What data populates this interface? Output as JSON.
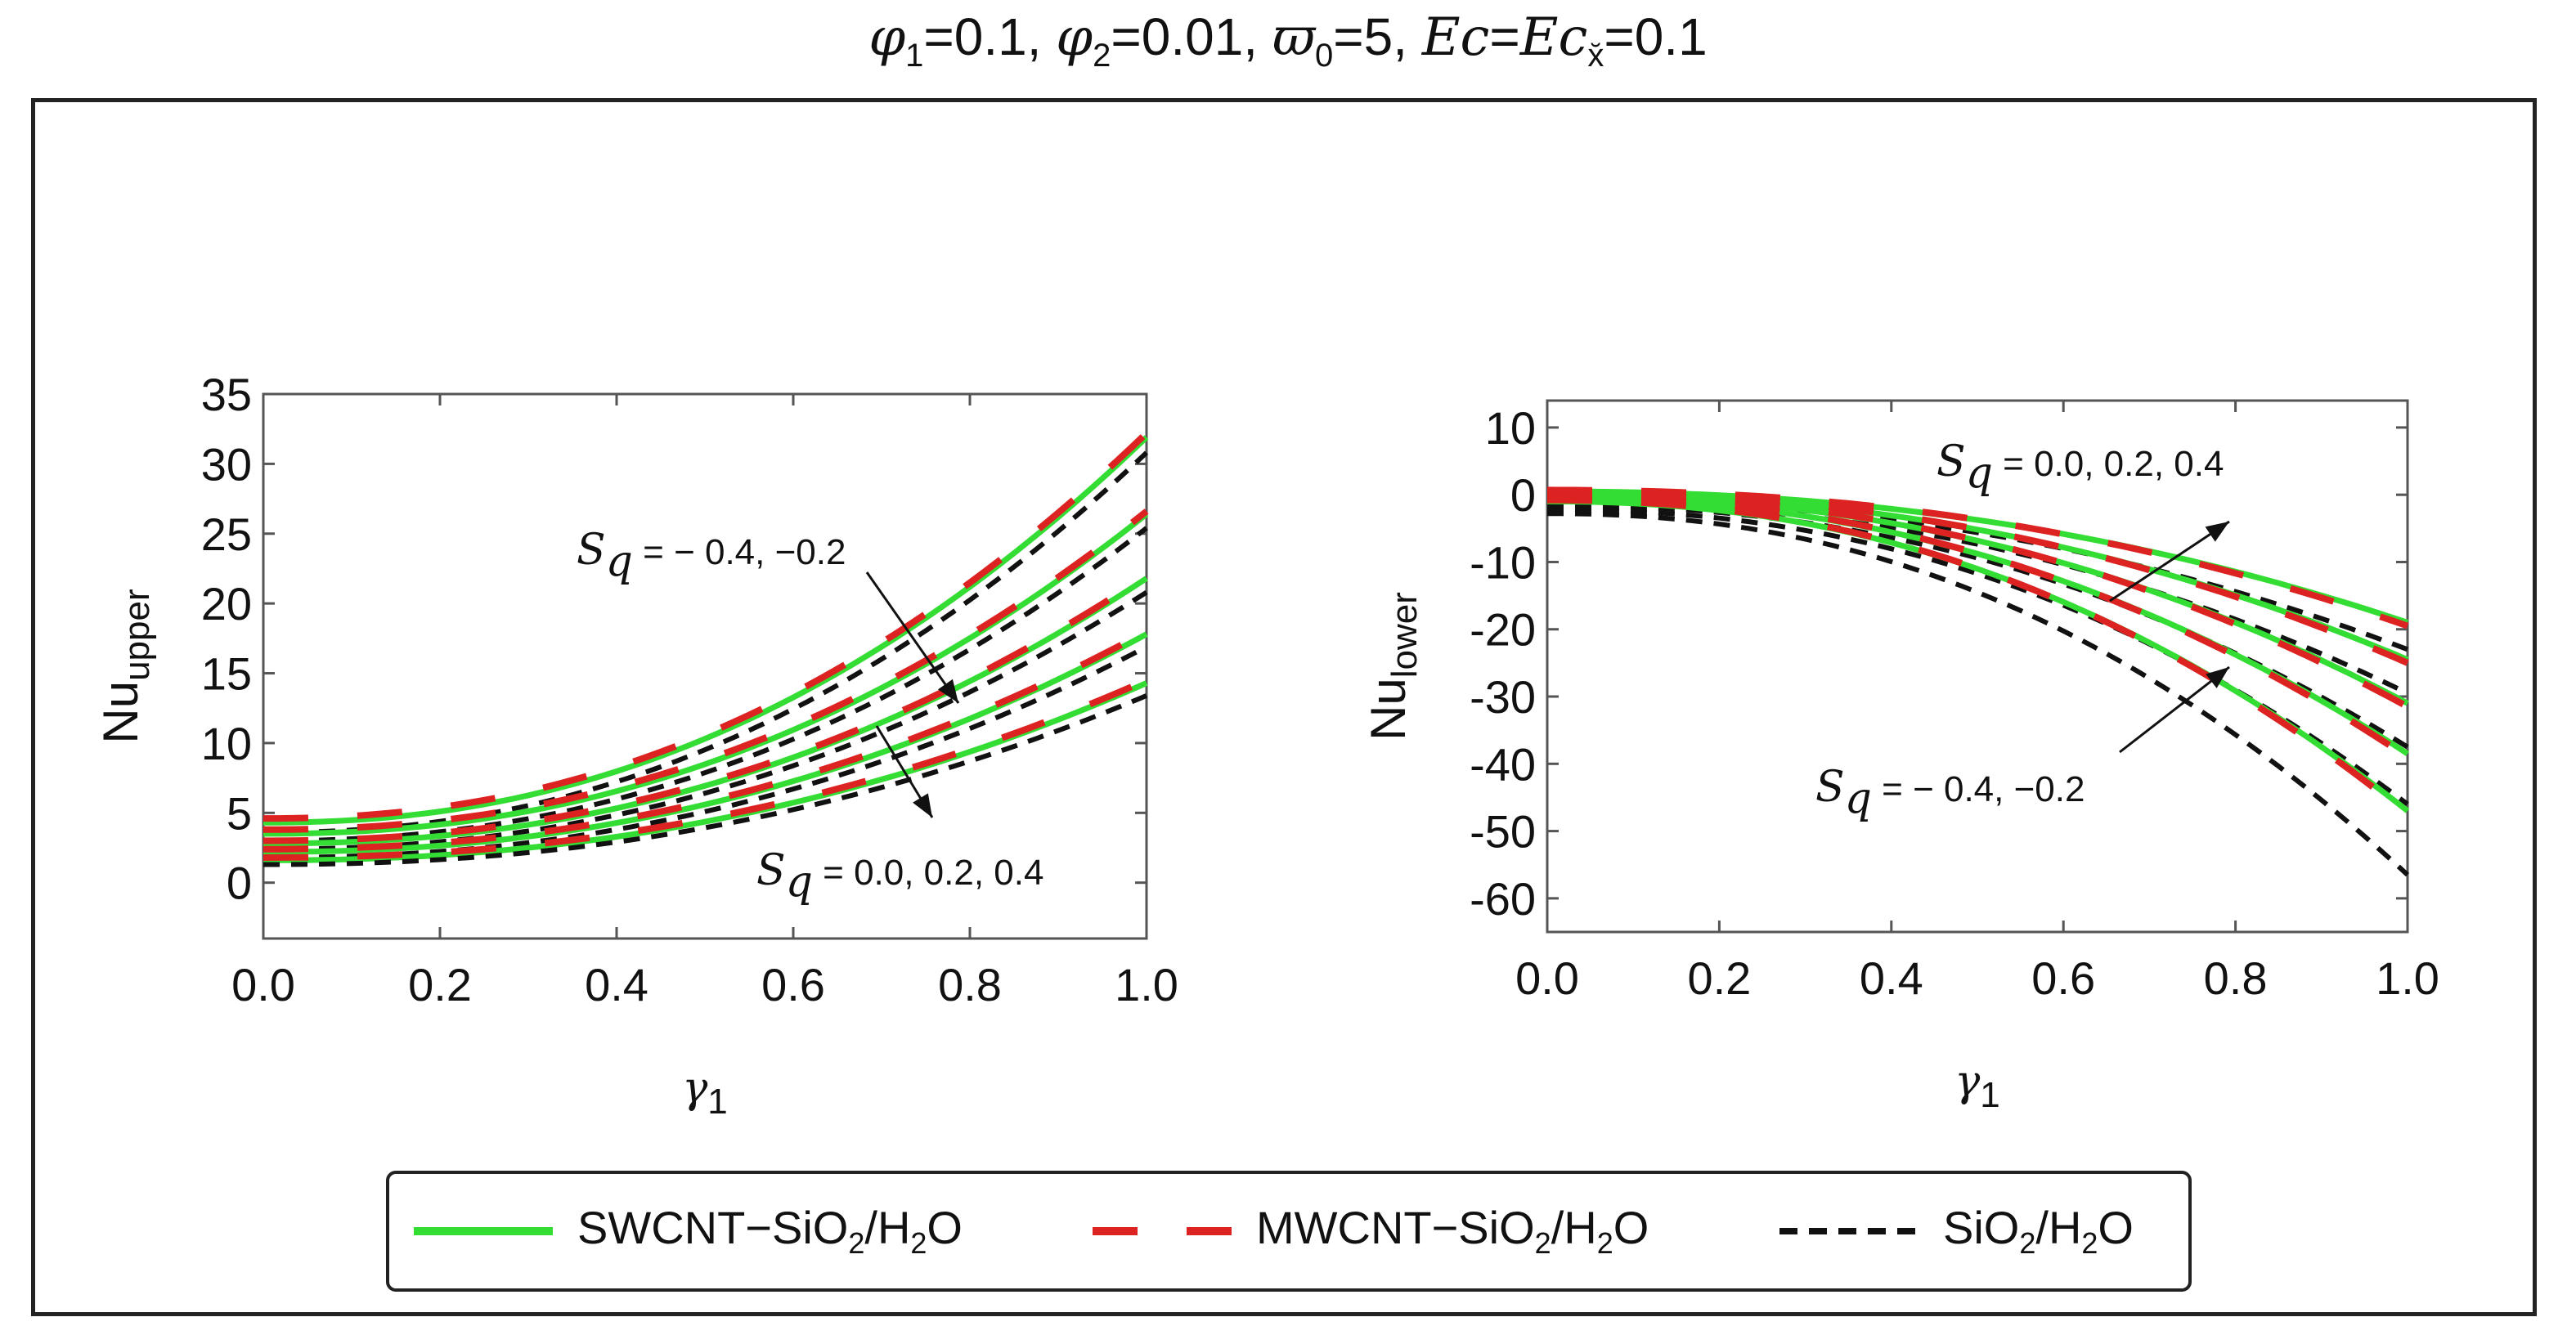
{
  "title": {
    "phi1_sym": "φ",
    "phi1_sub": "1",
    "phi1_val": "=0.1, ",
    "phi2_sym": "φ",
    "phi2_sub": "2",
    "phi2_val": "=0.01, ",
    "omega_sym": "ϖ",
    "omega_sub": "0",
    "omega_val": "=5, ",
    "ec_sym": "Ec",
    "ec_eq": "=",
    "ecx_sym": "Ec",
    "ecx_sub": "x̆",
    "ecx_val": "=0.1"
  },
  "chart_data": [
    {
      "type": "line",
      "name": "upper",
      "ylabel_main": "Nu",
      "ylabel_sub": "upper",
      "xlabel_main": "γ",
      "xlabel_sub": "1",
      "xlim": [
        0,
        1
      ],
      "ylim": [
        -4,
        35
      ],
      "xticks": [
        "0.0",
        "0.2",
        "0.4",
        "0.6",
        "0.8",
        "1.0"
      ],
      "yticks": [
        "35",
        "30",
        "25",
        "20",
        "15",
        "10",
        "5",
        "0"
      ],
      "ytick_values": [
        35,
        30,
        25,
        20,
        15,
        10,
        5,
        0
      ],
      "xtick_values": [
        0,
        0.2,
        0.4,
        0.6,
        0.8,
        1.0
      ],
      "annotations": [
        {
          "s": "S",
          "sub": "q",
          "text": " = − 0.4, −0.2"
        },
        {
          "s": "S",
          "sub": "q",
          "text": " = 0.0, 0.2, 0.4"
        }
      ],
      "series": [
        {
          "fluid": "SWCNT",
          "Sq": -0.4,
          "start": 4.3,
          "end": 31.9
        },
        {
          "fluid": "MWCNT",
          "Sq": -0.4,
          "start": 4.6,
          "end": 32.2
        },
        {
          "fluid": "SiO2",
          "Sq": -0.4,
          "start": 3.6,
          "end": 30.8
        },
        {
          "fluid": "SWCNT",
          "Sq": -0.2,
          "start": 3.5,
          "end": 26.4
        },
        {
          "fluid": "MWCNT",
          "Sq": -0.2,
          "start": 3.8,
          "end": 26.6
        },
        {
          "fluid": "SiO2",
          "Sq": -0.2,
          "start": 3.0,
          "end": 25.4
        },
        {
          "fluid": "SWCNT",
          "Sq": 0.0,
          "start": 2.8,
          "end": 21.8
        },
        {
          "fluid": "MWCNT",
          "Sq": 0.0,
          "start": 3.0,
          "end": 22.0
        },
        {
          "fluid": "SiO2",
          "Sq": 0.0,
          "start": 2.4,
          "end": 20.8
        },
        {
          "fluid": "SWCNT",
          "Sq": 0.2,
          "start": 2.2,
          "end": 17.8
        },
        {
          "fluid": "MWCNT",
          "Sq": 0.2,
          "start": 2.4,
          "end": 18.0
        },
        {
          "fluid": "SiO2",
          "Sq": 0.2,
          "start": 1.8,
          "end": 16.9
        },
        {
          "fluid": "SWCNT",
          "Sq": 0.4,
          "start": 1.6,
          "end": 14.3
        },
        {
          "fluid": "MWCNT",
          "Sq": 0.4,
          "start": 1.8,
          "end": 14.5
        },
        {
          "fluid": "SiO2",
          "Sq": 0.4,
          "start": 1.3,
          "end": 13.4
        }
      ]
    },
    {
      "type": "line",
      "name": "lower",
      "ylabel_main": "Nu",
      "ylabel_sub": "lower",
      "xlabel_main": "γ",
      "xlabel_sub": "1",
      "xlim": [
        0,
        1
      ],
      "ylim": [
        -65,
        14
      ],
      "xticks": [
        "0.0",
        "0.2",
        "0.4",
        "0.6",
        "0.8",
        "1.0"
      ],
      "yticks": [
        "10",
        "0",
        "-10",
        "-20",
        "-30",
        "-40",
        "-50",
        "-60"
      ],
      "ytick_values": [
        10,
        0,
        -10,
        -20,
        -30,
        -40,
        -50,
        -60
      ],
      "xtick_values": [
        0,
        0.2,
        0.4,
        0.6,
        0.8,
        1.0
      ],
      "annotations": [
        {
          "s": "S",
          "sub": "q",
          "text": " = 0.0, 0.2, 0.4"
        },
        {
          "s": "S",
          "sub": "q",
          "text": " = − 0.4, −0.2"
        }
      ],
      "series": [
        {
          "fluid": "SWCNT",
          "Sq": 0.4,
          "start": 0.5,
          "end": -19.0
        },
        {
          "fluid": "MWCNT",
          "Sq": 0.4,
          "start": 0.7,
          "end": -19.5
        },
        {
          "fluid": "SiO2",
          "Sq": 0.4,
          "start": -0.8,
          "end": -23.0
        },
        {
          "fluid": "SWCNT",
          "Sq": 0.2,
          "start": 0.2,
          "end": -24.5
        },
        {
          "fluid": "MWCNT",
          "Sq": 0.2,
          "start": 0.4,
          "end": -25.0
        },
        {
          "fluid": "SiO2",
          "Sq": 0.2,
          "start": -1.2,
          "end": -29.5
        },
        {
          "fluid": "SWCNT",
          "Sq": 0.0,
          "start": -0.1,
          "end": -31.0
        },
        {
          "fluid": "MWCNT",
          "Sq": 0.0,
          "start": 0.1,
          "end": -31.5
        },
        {
          "fluid": "SiO2",
          "Sq": 0.0,
          "start": -1.6,
          "end": -37.5
        },
        {
          "fluid": "SWCNT",
          "Sq": -0.2,
          "start": -0.5,
          "end": -38.5
        },
        {
          "fluid": "MWCNT",
          "Sq": -0.2,
          "start": -0.3,
          "end": -39.0
        },
        {
          "fluid": "SiO2",
          "Sq": -0.2,
          "start": -2.2,
          "end": -46.0
        },
        {
          "fluid": "SWCNT",
          "Sq": -0.4,
          "start": -1.0,
          "end": -47.0
        },
        {
          "fluid": "MWCNT",
          "Sq": -0.4,
          "start": -0.8,
          "end": -47.5
        },
        {
          "fluid": "SiO2",
          "Sq": -0.4,
          "start": -2.8,
          "end": -56.5
        }
      ]
    }
  ],
  "legend": [
    {
      "key": "SWCNT",
      "label_a": "SWCNT−SiO",
      "sub1": "2",
      "label_b": "/H",
      "sub2": "2",
      "label_c": "O",
      "color": "#33dd33",
      "style": "solid"
    },
    {
      "key": "MWCNT",
      "label_a": "MWCNT−SiO",
      "sub1": "2",
      "label_b": "/H",
      "sub2": "2",
      "label_c": "O",
      "color": "#dd2222",
      "style": "dashed-long"
    },
    {
      "key": "SiO2",
      "label_a": "SiO",
      "sub1": "2",
      "label_b": "/H",
      "sub2": "2",
      "label_c": "O",
      "color": "#111111",
      "style": "dashed-short"
    }
  ],
  "colors": {
    "SWCNT": "#33dd33",
    "MWCNT": "#dd2222",
    "SiO2": "#111111"
  }
}
